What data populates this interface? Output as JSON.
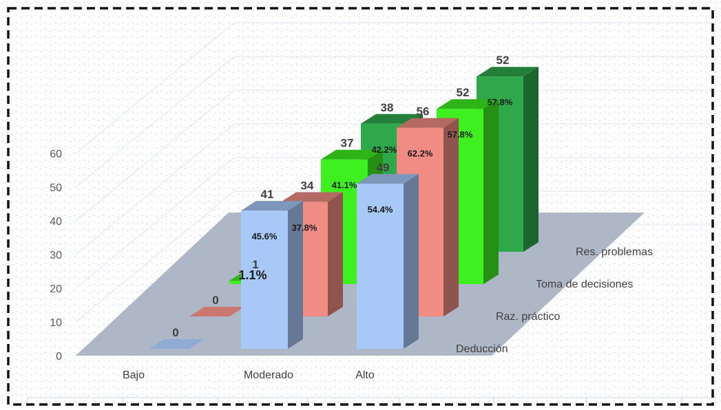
{
  "chart_data": {
    "type": "bar",
    "subtype": "3d-column",
    "categories": [
      "Bajo",
      "Moderado",
      "Alto"
    ],
    "series": [
      {
        "name": "Deducción",
        "color": "#a8c8f8",
        "values": [
          0,
          41,
          49
        ],
        "percent_labels": [
          "",
          "45.6%",
          "54.4%"
        ]
      },
      {
        "name": "Raz. práctico",
        "color": "#f08c84",
        "values": [
          0,
          34,
          56
        ],
        "percent_labels": [
          "",
          "37.8%",
          "62.2%"
        ]
      },
      {
        "name": "Toma de decisiones",
        "color": "#3ef020",
        "values": [
          1,
          37,
          52
        ],
        "percent_labels": [
          "1.1%",
          "41.1%",
          "57.8%"
        ]
      },
      {
        "name": "Res. problemas",
        "color": "#2ea84a",
        "values": [
          0,
          38,
          52
        ],
        "percent_labels": [
          "",
          "42.2%",
          "57.8%"
        ]
      }
    ],
    "value_labels": [
      [
        "0",
        "41",
        "49"
      ],
      [
        "0",
        "34",
        "56"
      ],
      [
        "1",
        "37",
        "52"
      ],
      [
        "",
        "38",
        "52"
      ]
    ],
    "ylim": [
      0,
      60
    ],
    "yticks": [
      "0",
      "10",
      "20",
      "30",
      "40",
      "50",
      "60"
    ],
    "grid": true,
    "border": "dashed",
    "background": "dotted-pattern"
  }
}
